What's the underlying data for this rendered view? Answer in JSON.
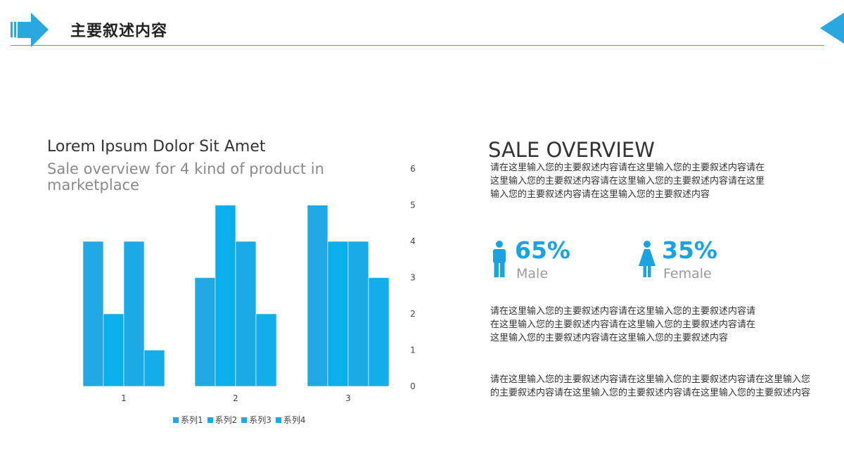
{
  "header": {
    "title": "主要叙述内容",
    "icon": "arrow-right-icon",
    "accent_color": "#29a8df"
  },
  "left_panel": {
    "title": "Lorem Ipsum Dolor Sit Amet",
    "subtitle": "Sale overview for 4 kind of product in marketplace"
  },
  "chart_data": {
    "type": "bar",
    "categories": [
      "1",
      "2",
      "3"
    ],
    "series": [
      {
        "name": "系列1",
        "values": [
          4,
          3,
          5
        ],
        "color": "#22a8e2"
      },
      {
        "name": "系列2",
        "values": [
          2,
          5,
          4
        ],
        "color": "#0aaee9"
      },
      {
        "name": "系列3",
        "values": [
          4,
          4,
          4
        ],
        "color": "#1aabe6"
      },
      {
        "name": "系列4",
        "values": [
          1,
          2,
          3
        ],
        "color": "#12aeea"
      }
    ],
    "y_ticks": [
      "0",
      "1",
      "2",
      "3",
      "4",
      "5",
      "6"
    ],
    "ylim": [
      0,
      6
    ],
    "y_axis_position": "right",
    "grid": false,
    "legend_position": "bottom"
  },
  "right_panel": {
    "title": "SALE OVERVIEW",
    "paragraph_1": "请在这里输入您的主要叙述内容请在这里输入您的主要叙述内容请在这里输入您的主要叙述内容请在这里输入您的主要叙述内容请在这里输入您的主要叙述内容请在这里输入您的主要叙述内容",
    "paragraph_2": "请在这里输入您的主要叙述内容请在这里输入您的主要叙述内容请在这里输入您的主要叙述内容请在这里输入您的主要叙述内容请在这里输入您的主要叙述内容请在这里输入您的主要叙述内容",
    "paragraph_3": "请在这里输入您的主要叙述内容请在这里输入您的主要叙述内容请在这里输入您的主要叙述内容请在这里输入您的主要叙述内容请在这里输入您的主要叙述内容",
    "male": {
      "percent": "65%",
      "label": "Male",
      "icon": "male-person-icon"
    },
    "female": {
      "percent": "35%",
      "label": "Female",
      "icon": "female-person-icon"
    }
  }
}
